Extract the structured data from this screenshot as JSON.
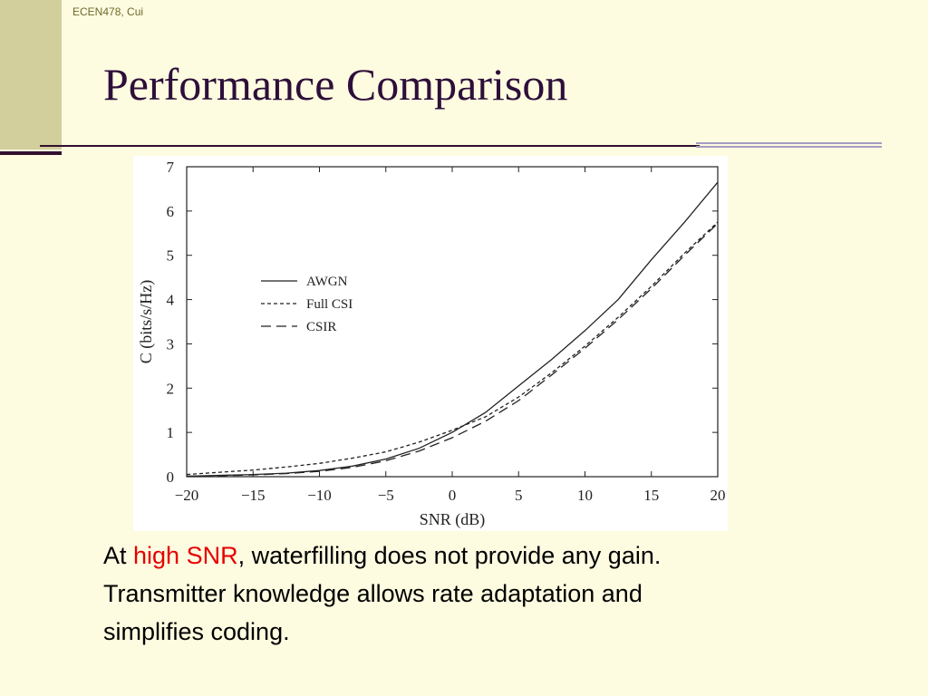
{
  "header": {
    "tag": "ECEN478, Cui"
  },
  "slide": {
    "title": "Performance Comparison"
  },
  "body": {
    "line1_prefix": "At ",
    "line1_highlight": "high SNR",
    "line1_suffix": ", waterfilling does not provide any gain.",
    "line2": "Transmitter knowledge allows rate adaptation and",
    "line3": "simplifies coding.",
    "highlight_color": "#e60000"
  },
  "chart_data": {
    "type": "line",
    "xlabel": "SNR (dB)",
    "ylabel": "C (bits/s/Hz)",
    "xlim": [
      -20,
      20
    ],
    "ylim": [
      0,
      7
    ],
    "xticks": [
      -20,
      -15,
      -10,
      -5,
      0,
      5,
      10,
      15,
      20
    ],
    "yticks": [
      0,
      1,
      2,
      3,
      4,
      5,
      6,
      7
    ],
    "xtick_labels": [
      "−20",
      "−15",
      "−10",
      "−5",
      "0",
      "5",
      "10",
      "15",
      "20"
    ],
    "ytick_labels": [
      "0",
      "1",
      "2",
      "3",
      "4",
      "5",
      "6",
      "7"
    ],
    "grid": false,
    "legend_position": "upper-left",
    "series": [
      {
        "name": "AWGN",
        "style": "solid",
        "x": [
          -20,
          -17.5,
          -15,
          -12.5,
          -10,
          -7.5,
          -5,
          -2.5,
          0,
          2.5,
          5,
          7.5,
          10,
          12.5,
          15,
          17.5,
          20
        ],
        "y": [
          0.01,
          0.03,
          0.05,
          0.08,
          0.14,
          0.24,
          0.4,
          0.64,
          1.0,
          1.45,
          2.05,
          2.65,
          3.3,
          4.0,
          4.9,
          5.75,
          6.65
        ]
      },
      {
        "name": "Full CSI",
        "style": "short-dash",
        "x": [
          -20,
          -17.5,
          -15,
          -12.5,
          -10,
          -7.5,
          -5,
          -2.5,
          0,
          2.5,
          5,
          7.5,
          10,
          12.5,
          15,
          17.5,
          20
        ],
        "y": [
          0.05,
          0.1,
          0.15,
          0.22,
          0.3,
          0.42,
          0.56,
          0.78,
          1.05,
          1.35,
          1.8,
          2.35,
          2.95,
          3.6,
          4.3,
          5.05,
          5.75
        ]
      },
      {
        "name": "CSIR",
        "style": "long-dash",
        "x": [
          -20,
          -17.5,
          -15,
          -12.5,
          -10,
          -7.5,
          -5,
          -2.5,
          0,
          2.5,
          5,
          7.5,
          10,
          12.5,
          15,
          17.5,
          20
        ],
        "y": [
          0.01,
          0.02,
          0.04,
          0.07,
          0.12,
          0.21,
          0.36,
          0.58,
          0.88,
          1.25,
          1.72,
          2.3,
          2.9,
          3.55,
          4.25,
          5.0,
          5.72
        ]
      }
    ]
  }
}
